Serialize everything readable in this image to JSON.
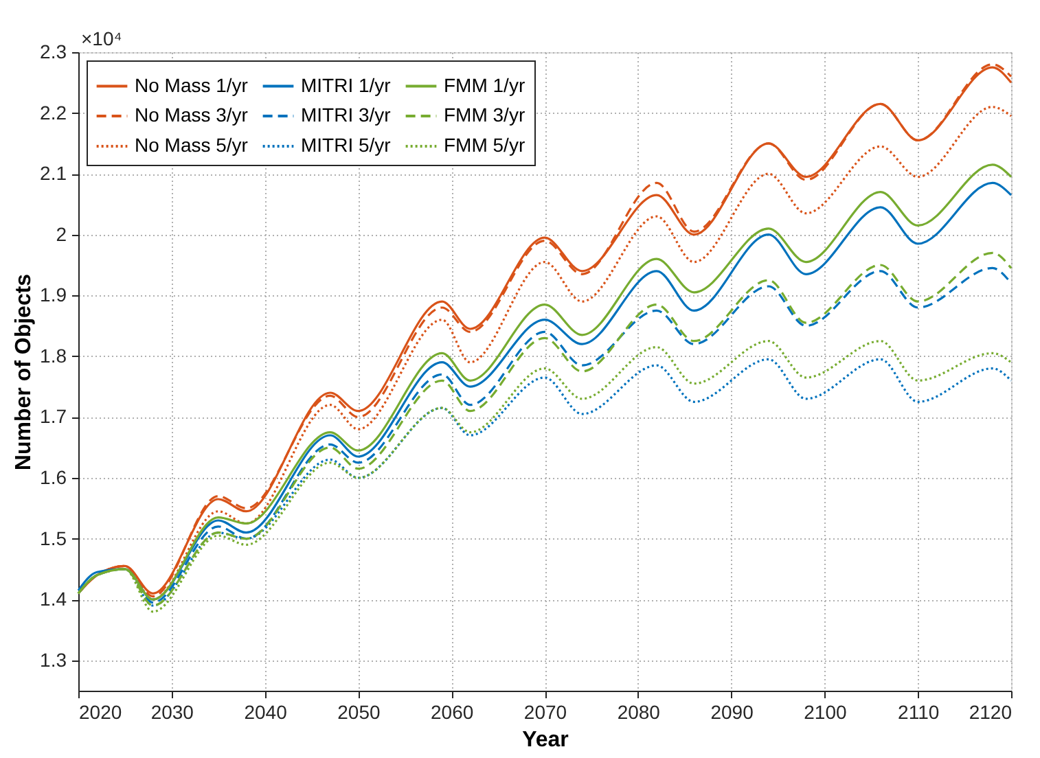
{
  "chart_data": {
    "type": "line",
    "xlabel": "Year",
    "ylabel": "Number of Objects",
    "annotations": [
      "×10⁴"
    ],
    "x": [
      2020,
      2022,
      2025,
      2028,
      2035,
      2038,
      2047,
      2050,
      2059,
      2062,
      2070,
      2074,
      2082,
      2086,
      2094,
      2098,
      2106,
      2110,
      2118,
      2120
    ],
    "xlim": [
      2020,
      2120
    ],
    "xticks": [
      2020,
      2030,
      2040,
      2050,
      2060,
      2070,
      2080,
      2090,
      2100,
      2110,
      2120
    ],
    "ylim": [
      1.25,
      2.3
    ],
    "yticks": [
      1.3,
      1.4,
      1.5,
      1.6,
      1.7,
      1.8,
      1.9,
      2,
      2.1,
      2.2,
      2.3
    ],
    "grid": true,
    "legend": "top left",
    "marker": "none",
    "series": [
      {
        "name": "No Mass 1/yr",
        "color": "#d95319",
        "line_style": "solid",
        "values": [
          1.41,
          1.44,
          1.455,
          1.41,
          1.565,
          1.545,
          1.74,
          1.71,
          1.89,
          1.845,
          1.995,
          1.94,
          2.065,
          2.0,
          2.15,
          2.095,
          2.215,
          2.155,
          2.275,
          2.25
        ]
      },
      {
        "name": "No Mass 3/yr",
        "color": "#d95319",
        "line_style": "dashed",
        "values": [
          1.41,
          1.44,
          1.455,
          1.405,
          1.57,
          1.55,
          1.735,
          1.7,
          1.88,
          1.84,
          1.99,
          1.935,
          2.085,
          2.005,
          2.15,
          2.09,
          2.215,
          2.155,
          2.28,
          2.26
        ]
      },
      {
        "name": "No Mass 5/yr",
        "color": "#d95319",
        "line_style": "dotted",
        "values": [
          1.41,
          1.44,
          1.455,
          1.4,
          1.545,
          1.525,
          1.72,
          1.68,
          1.86,
          1.79,
          1.955,
          1.89,
          2.03,
          1.955,
          2.1,
          2.035,
          2.145,
          2.095,
          2.21,
          2.195
        ]
      },
      {
        "name": "MITRI 1/yr",
        "color": "#0072bd",
        "line_style": "solid",
        "values": [
          1.415,
          1.445,
          1.45,
          1.4,
          1.53,
          1.51,
          1.67,
          1.635,
          1.79,
          1.75,
          1.86,
          1.82,
          1.94,
          1.875,
          2.0,
          1.935,
          2.045,
          1.985,
          2.085,
          2.065
        ]
      },
      {
        "name": "MITRI 3/yr",
        "color": "#0072bd",
        "line_style": "dashed",
        "values": [
          1.41,
          1.44,
          1.45,
          1.395,
          1.52,
          1.5,
          1.655,
          1.625,
          1.77,
          1.72,
          1.84,
          1.785,
          1.875,
          1.82,
          1.915,
          1.85,
          1.94,
          1.88,
          1.945,
          1.92
        ]
      },
      {
        "name": "MITRI 5/yr",
        "color": "#0072bd",
        "line_style": "dotted",
        "values": [
          1.41,
          1.44,
          1.45,
          1.39,
          1.51,
          1.5,
          1.63,
          1.6,
          1.715,
          1.67,
          1.765,
          1.705,
          1.785,
          1.725,
          1.795,
          1.73,
          1.795,
          1.725,
          1.78,
          1.76
        ]
      },
      {
        "name": "FMM 1/yr",
        "color": "#77ac30",
        "line_style": "solid",
        "values": [
          1.41,
          1.44,
          1.45,
          1.4,
          1.535,
          1.525,
          1.675,
          1.645,
          1.805,
          1.76,
          1.885,
          1.835,
          1.96,
          1.905,
          2.01,
          1.955,
          2.07,
          2.015,
          2.115,
          2.095
        ]
      },
      {
        "name": "FMM 3/yr",
        "color": "#77ac30",
        "line_style": "dashed",
        "values": [
          1.41,
          1.44,
          1.45,
          1.39,
          1.51,
          1.5,
          1.65,
          1.615,
          1.76,
          1.71,
          1.83,
          1.775,
          1.885,
          1.825,
          1.925,
          1.855,
          1.95,
          1.89,
          1.97,
          1.945
        ]
      },
      {
        "name": "FMM 5/yr",
        "color": "#77ac30",
        "line_style": "dotted",
        "values": [
          1.41,
          1.44,
          1.45,
          1.38,
          1.505,
          1.49,
          1.625,
          1.6,
          1.715,
          1.675,
          1.78,
          1.73,
          1.815,
          1.755,
          1.825,
          1.765,
          1.825,
          1.76,
          1.805,
          1.79
        ]
      }
    ]
  }
}
